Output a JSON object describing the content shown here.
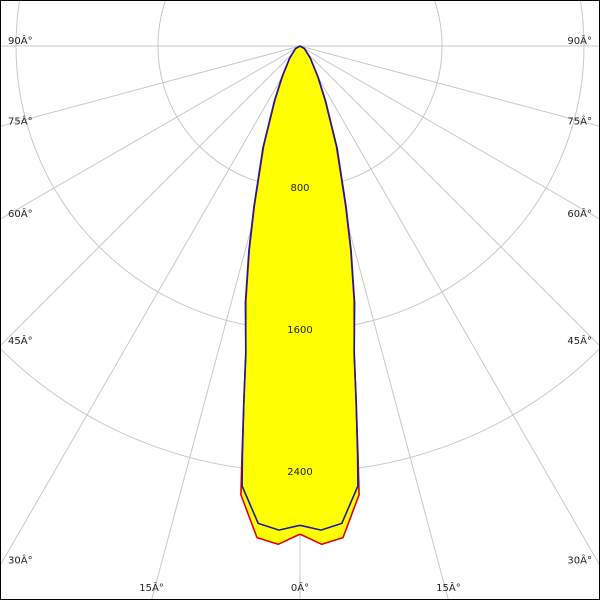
{
  "chart_data": {
    "type": "polar",
    "x": [
      0,
      2.5,
      5,
      7.5,
      8,
      9,
      10,
      12,
      14,
      16,
      20,
      25,
      30,
      40,
      60,
      90
    ],
    "series": [
      {
        "color": "#e00000",
        "values": [
          2750,
          2810,
          2780,
          2550,
          2350,
          2020,
          1760,
          1470,
          1180,
          930,
          600,
          330,
          200,
          90,
          30,
          0
        ]
      },
      {
        "color": "#1a1aa0",
        "values": [
          2700,
          2730,
          2700,
          2500,
          2330,
          2020,
          1760,
          1480,
          1190,
          940,
          610,
          340,
          205,
          92,
          30,
          0
        ]
      }
    ],
    "fill_color": "#ffff00",
    "rticks": [
      800,
      1600,
      2400
    ],
    "angle_ticks": [
      {
        "value": 0,
        "label": "0Â°"
      },
      {
        "value": 15,
        "label": "15Â°"
      },
      {
        "value": 30,
        "label": "30Â°"
      },
      {
        "value": 45,
        "label": "45Â°"
      },
      {
        "value": 60,
        "label": "60Â°"
      },
      {
        "value": 75,
        "label": "75Â°"
      },
      {
        "value": 90,
        "label": "90Â°"
      }
    ],
    "grid": true
  }
}
